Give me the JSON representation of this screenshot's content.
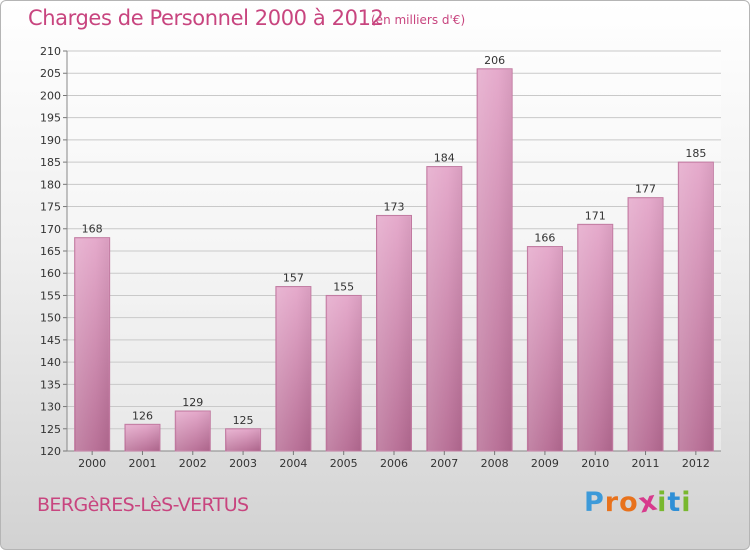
{
  "chart_data": {
    "type": "bar",
    "title": "Charges de Personnel 2000 à 2012",
    "subtitle": "(en milliers d'€)",
    "categories": [
      "2000",
      "2001",
      "2002",
      "2003",
      "2004",
      "2005",
      "2006",
      "2007",
      "2008",
      "2009",
      "2010",
      "2011",
      "2012"
    ],
    "values": [
      168,
      126,
      129,
      125,
      157,
      155,
      173,
      184,
      206,
      166,
      171,
      177,
      185
    ],
    "ylim": [
      120,
      210
    ],
    "yticks": [
      120,
      125,
      130,
      135,
      140,
      145,
      150,
      155,
      160,
      165,
      170,
      175,
      180,
      185,
      190,
      195,
      200,
      205,
      210
    ],
    "grid": true,
    "bar_color": "#d987b4",
    "xlabel": "",
    "ylabel": ""
  },
  "footer": {
    "place": "BERGèRES-LèS-VERTUS",
    "logo": [
      "P",
      "r",
      "o",
      "x",
      "i",
      "t",
      "i"
    ],
    "logo_colors": [
      "#3d9ad9",
      "#e8721c",
      "#e8721c",
      "#d73a8c",
      "#79b82f",
      "#2f8fd6",
      "#79b82f"
    ]
  },
  "colors": {
    "accent": "#c8457f"
  }
}
